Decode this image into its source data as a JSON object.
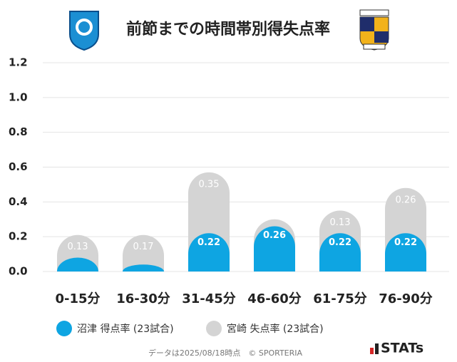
{
  "chart_data": {
    "type": "bar",
    "stacked": true,
    "title": "前節までの時間帯別得失点率",
    "categories": [
      "0-15分",
      "16-30分",
      "31-45分",
      "46-60分",
      "61-75分",
      "76-90分"
    ],
    "series": [
      {
        "name": "沼津 得点率 (23試合)",
        "color": "#0ea5e2",
        "values": [
          0.08,
          0.04,
          0.22,
          0.26,
          0.22,
          0.22
        ],
        "value_labels": [
          null,
          null,
          "0.22",
          "0.26",
          "0.22",
          "0.22"
        ]
      },
      {
        "name": "宮崎 失点率 (23試合)",
        "color": "#d4d4d4",
        "values": [
          0.13,
          0.17,
          0.35,
          0.04,
          0.13,
          0.26
        ],
        "value_labels": [
          "0.13",
          "0.17",
          "0.35",
          null,
          "0.13",
          "0.26"
        ]
      }
    ],
    "ylim": [
      0,
      1.2
    ],
    "yticks": [
      {
        "value": 0,
        "label": "0.0"
      },
      0.2,
      0.4,
      0.6,
      0.8,
      {
        "value": 1,
        "label": "1.0"
      },
      1.2
    ],
    "grid": true,
    "footer": "データは2025/08/18時点　© SPORTERIA",
    "brand": "STATs"
  }
}
